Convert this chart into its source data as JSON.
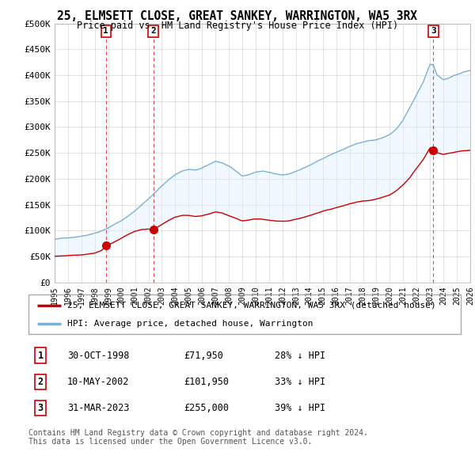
{
  "title": "25, ELMSETT CLOSE, GREAT SANKEY, WARRINGTON, WA5 3RX",
  "subtitle": "Price paid vs. HM Land Registry's House Price Index (HPI)",
  "ylim": [
    0,
    500000
  ],
  "yticks": [
    0,
    50000,
    100000,
    150000,
    200000,
    250000,
    300000,
    350000,
    400000,
    450000,
    500000
  ],
  "ytick_labels": [
    "£0",
    "£50K",
    "£100K",
    "£150K",
    "£200K",
    "£250K",
    "£300K",
    "£350K",
    "£400K",
    "£450K",
    "£500K"
  ],
  "sales": [
    {
      "date_num": 1998.83,
      "price": 71950,
      "label": "1"
    },
    {
      "date_num": 2002.36,
      "price": 101950,
      "label": "2"
    },
    {
      "date_num": 2023.25,
      "price": 255000,
      "label": "3"
    }
  ],
  "sale_color": "#cc0000",
  "hpi_color": "#7ab0d4",
  "vline_color": "#cc0000",
  "shade_color": "#ddeeff",
  "grid_color": "#cccccc",
  "bg_color": "#f8f8f8",
  "legend_entries": [
    "25, ELMSETT CLOSE, GREAT SANKEY, WARRINGTON, WA5 3RX (detached house)",
    "HPI: Average price, detached house, Warrington"
  ],
  "table_rows": [
    {
      "num": "1",
      "date": "30-OCT-1998",
      "price": "£71,950",
      "hpi": "28% ↓ HPI"
    },
    {
      "num": "2",
      "date": "10-MAY-2002",
      "price": "£101,950",
      "hpi": "33% ↓ HPI"
    },
    {
      "num": "3",
      "date": "31-MAR-2023",
      "price": "£255,000",
      "hpi": "39% ↓ HPI"
    }
  ],
  "footnote": "Contains HM Land Registry data © Crown copyright and database right 2024.\nThis data is licensed under the Open Government Licence v3.0.",
  "xmin": 1995,
  "xmax": 2026,
  "hpi_points": [
    [
      1995.0,
      83000
    ],
    [
      1995.5,
      84500
    ],
    [
      1996.0,
      86000
    ],
    [
      1996.5,
      88000
    ],
    [
      1997.0,
      90000
    ],
    [
      1997.5,
      93000
    ],
    [
      1998.0,
      97000
    ],
    [
      1998.5,
      101000
    ],
    [
      1999.0,
      107000
    ],
    [
      1999.5,
      114000
    ],
    [
      2000.0,
      121000
    ],
    [
      2000.5,
      130000
    ],
    [
      2001.0,
      140000
    ],
    [
      2001.5,
      152000
    ],
    [
      2002.0,
      163000
    ],
    [
      2002.5,
      175000
    ],
    [
      2003.0,
      188000
    ],
    [
      2003.5,
      200000
    ],
    [
      2004.0,
      210000
    ],
    [
      2004.5,
      217000
    ],
    [
      2005.0,
      220000
    ],
    [
      2005.5,
      218000
    ],
    [
      2006.0,
      222000
    ],
    [
      2006.5,
      228000
    ],
    [
      2007.0,
      235000
    ],
    [
      2007.5,
      232000
    ],
    [
      2008.0,
      225000
    ],
    [
      2008.5,
      215000
    ],
    [
      2009.0,
      205000
    ],
    [
      2009.5,
      208000
    ],
    [
      2010.0,
      213000
    ],
    [
      2010.5,
      215000
    ],
    [
      2011.0,
      212000
    ],
    [
      2011.5,
      210000
    ],
    [
      2012.0,
      208000
    ],
    [
      2012.5,
      210000
    ],
    [
      2013.0,
      215000
    ],
    [
      2013.5,
      220000
    ],
    [
      2014.0,
      226000
    ],
    [
      2014.5,
      232000
    ],
    [
      2015.0,
      238000
    ],
    [
      2015.5,
      244000
    ],
    [
      2016.0,
      250000
    ],
    [
      2016.5,
      256000
    ],
    [
      2017.0,
      262000
    ],
    [
      2017.5,
      267000
    ],
    [
      2018.0,
      270000
    ],
    [
      2018.5,
      272000
    ],
    [
      2019.0,
      274000
    ],
    [
      2019.5,
      278000
    ],
    [
      2020.0,
      284000
    ],
    [
      2020.5,
      295000
    ],
    [
      2021.0,
      312000
    ],
    [
      2021.5,
      335000
    ],
    [
      2022.0,
      360000
    ],
    [
      2022.5,
      385000
    ],
    [
      2023.0,
      420000
    ],
    [
      2023.25,
      418000
    ],
    [
      2023.5,
      400000
    ],
    [
      2024.0,
      390000
    ],
    [
      2024.5,
      395000
    ],
    [
      2025.0,
      400000
    ],
    [
      2025.5,
      405000
    ],
    [
      2026.0,
      408000
    ]
  ],
  "red_points": [
    [
      1995.0,
      50000
    ],
    [
      1995.5,
      51000
    ],
    [
      1996.0,
      52000
    ],
    [
      1996.5,
      53000
    ],
    [
      1997.0,
      54000
    ],
    [
      1997.5,
      56000
    ],
    [
      1998.0,
      58000
    ],
    [
      1998.5,
      63000
    ],
    [
      1998.83,
      71950
    ],
    [
      1999.0,
      74000
    ],
    [
      1999.5,
      80000
    ],
    [
      2000.0,
      87000
    ],
    [
      2000.5,
      94000
    ],
    [
      2001.0,
      100000
    ],
    [
      2001.5,
      103000
    ],
    [
      2002.0,
      104000
    ],
    [
      2002.36,
      101950
    ],
    [
      2002.5,
      104000
    ],
    [
      2003.0,
      112000
    ],
    [
      2003.5,
      120000
    ],
    [
      2004.0,
      127000
    ],
    [
      2004.5,
      130000
    ],
    [
      2005.0,
      130000
    ],
    [
      2005.5,
      128000
    ],
    [
      2006.0,
      130000
    ],
    [
      2006.5,
      133000
    ],
    [
      2007.0,
      137000
    ],
    [
      2007.5,
      135000
    ],
    [
      2008.0,
      130000
    ],
    [
      2008.5,
      125000
    ],
    [
      2009.0,
      120000
    ],
    [
      2009.5,
      122000
    ],
    [
      2010.0,
      124000
    ],
    [
      2010.5,
      124000
    ],
    [
      2011.0,
      122000
    ],
    [
      2011.5,
      120000
    ],
    [
      2012.0,
      119000
    ],
    [
      2012.5,
      120000
    ],
    [
      2013.0,
      123000
    ],
    [
      2013.5,
      126000
    ],
    [
      2014.0,
      130000
    ],
    [
      2014.5,
      134000
    ],
    [
      2015.0,
      138000
    ],
    [
      2015.5,
      141000
    ],
    [
      2016.0,
      145000
    ],
    [
      2016.5,
      148000
    ],
    [
      2017.0,
      152000
    ],
    [
      2017.5,
      155000
    ],
    [
      2018.0,
      157000
    ],
    [
      2018.5,
      158000
    ],
    [
      2019.0,
      160000
    ],
    [
      2019.5,
      163000
    ],
    [
      2020.0,
      167000
    ],
    [
      2020.5,
      175000
    ],
    [
      2021.0,
      186000
    ],
    [
      2021.5,
      200000
    ],
    [
      2022.0,
      218000
    ],
    [
      2022.5,
      235000
    ],
    [
      2023.0,
      258000
    ],
    [
      2023.25,
      255000
    ],
    [
      2023.5,
      248000
    ],
    [
      2024.0,
      244000
    ],
    [
      2024.5,
      247000
    ],
    [
      2025.0,
      250000
    ],
    [
      2025.5,
      252000
    ],
    [
      2026.0,
      253000
    ]
  ]
}
